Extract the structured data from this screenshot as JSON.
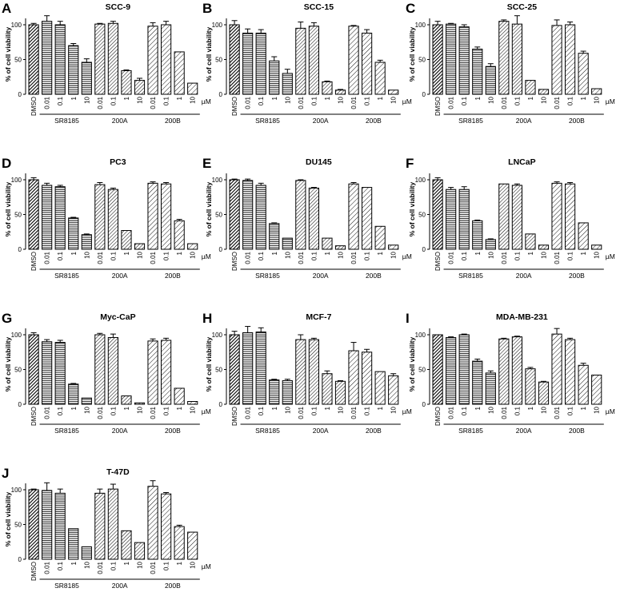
{
  "figure": {
    "x_categories": [
      "DMSO",
      "0.01",
      "0.1",
      "1",
      "10",
      "0.01",
      "0.1",
      "1",
      "10",
      "0.01",
      "0.1",
      "1",
      "10"
    ],
    "unit": "µM",
    "groups": [
      {
        "name": "SR8185",
        "pattern": "horizontal-stripes",
        "start": 1,
        "end": 4
      },
      {
        "name": "200A",
        "pattern": "diagonal-fine",
        "start": 5,
        "end": 8
      },
      {
        "name": "200B",
        "pattern": "diagonal-wide",
        "start": 9,
        "end": 12
      }
    ],
    "ylabel": "% of cell viability",
    "yticks": [
      "0",
      "50",
      "100"
    ],
    "colors": {
      "ink": "#000000",
      "dmso_fill": "#555555",
      "background": "#ffffff"
    }
  },
  "chart_data": [
    {
      "type": "bar",
      "letter": "A",
      "title": "SCC-9",
      "ylabel": "% of cell viability",
      "ylim": [
        0,
        120
      ],
      "categories": [
        "DMSO",
        "0.01",
        "0.1",
        "1",
        "10",
        "0.01",
        "0.1",
        "1",
        "10",
        "0.01",
        "0.1",
        "1",
        "10"
      ],
      "values": [
        100,
        105,
        100,
        70,
        46,
        101,
        102,
        34,
        20,
        98,
        100,
        61,
        16
      ],
      "errors": [
        2,
        8,
        5,
        3,
        5,
        1,
        3,
        1,
        3,
        5,
        5,
        0,
        0
      ]
    },
    {
      "type": "bar",
      "letter": "B",
      "title": "SCC-15",
      "ylabel": "% of cell viability",
      "ylim": [
        0,
        120
      ],
      "categories": [
        "DMSO",
        "0.01",
        "0.1",
        "1",
        "10",
        "0.01",
        "0.1",
        "1",
        "10",
        "0.01",
        "0.1",
        "1",
        "10"
      ],
      "values": [
        100,
        88,
        88,
        48,
        30,
        95,
        98,
        18,
        6,
        98,
        88,
        46,
        6
      ],
      "errors": [
        6,
        6,
        5,
        6,
        6,
        9,
        5,
        1,
        1,
        1,
        5,
        3,
        0
      ]
    },
    {
      "type": "bar",
      "letter": "C",
      "title": "SCC-25",
      "ylabel": "% of cell viability",
      "ylim": [
        0,
        120
      ],
      "categories": [
        "DMSO",
        "0.01",
        "0.1",
        "1",
        "10",
        "0.01",
        "0.1",
        "1",
        "10",
        "0.01",
        "0.1",
        "1",
        "10"
      ],
      "values": [
        100,
        101,
        97,
        65,
        40,
        105,
        101,
        20,
        7,
        99,
        100,
        59,
        8
      ],
      "errors": [
        5,
        1,
        3,
        3,
        4,
        2,
        12,
        0,
        0,
        8,
        4,
        3,
        0
      ]
    },
    {
      "type": "bar",
      "letter": "D",
      "title": "PC3",
      "ylabel": "% of cell viability",
      "ylim": [
        0,
        120
      ],
      "categories": [
        "DMSO",
        "0.01",
        "0.1",
        "1",
        "10",
        "0.01",
        "0.1",
        "1",
        "10",
        "0.01",
        "0.1",
        "1",
        "10"
      ],
      "values": [
        100,
        92,
        90,
        45,
        21,
        93,
        86,
        27,
        8,
        95,
        94,
        41,
        8
      ],
      "errors": [
        3,
        3,
        2,
        1,
        1,
        3,
        2,
        0,
        0,
        2,
        2,
        2,
        0
      ]
    },
    {
      "type": "bar",
      "letter": "E",
      "title": "DU145",
      "ylabel": "% of cell viability",
      "ylim": [
        0,
        120
      ],
      "categories": [
        "DMSO",
        "0.01",
        "0.1",
        "1",
        "10",
        "0.01",
        "0.1",
        "1",
        "10",
        "0.01",
        "0.1",
        "1",
        "10"
      ],
      "values": [
        100,
        99,
        92,
        37,
        16,
        99,
        88,
        16,
        5,
        94,
        89,
        33,
        6
      ],
      "errors": [
        1,
        2,
        3,
        1,
        0,
        1,
        1,
        0,
        0,
        2,
        0,
        0,
        0
      ]
    },
    {
      "type": "bar",
      "letter": "F",
      "title": "LNCaP",
      "ylabel": "% of cell viability",
      "ylim": [
        0,
        120
      ],
      "categories": [
        "DMSO",
        "0.01",
        "0.1",
        "1",
        "10",
        "0.01",
        "0.1",
        "1",
        "10",
        "0.01",
        "0.1",
        "1",
        "10"
      ],
      "values": [
        100,
        86,
        86,
        41,
        14,
        94,
        92,
        22,
        6,
        95,
        94,
        38,
        6
      ],
      "errors": [
        3,
        3,
        4,
        1,
        1,
        0,
        2,
        0,
        0,
        2,
        2,
        0,
        0
      ]
    },
    {
      "type": "bar",
      "letter": "G",
      "title": "Myc-CaP",
      "ylabel": "% of cell viability",
      "ylim": [
        0,
        120
      ],
      "categories": [
        "DMSO",
        "0.01",
        "0.1",
        "1",
        "10",
        "0.01",
        "0.1",
        "1",
        "10",
        "0.01",
        "0.1",
        "1",
        "10"
      ],
      "values": [
        100,
        90,
        89,
        29,
        9,
        100,
        96,
        12,
        2,
        91,
        92,
        23,
        4
      ],
      "errors": [
        3,
        3,
        3,
        1,
        0,
        2,
        5,
        0,
        0,
        3,
        3,
        0,
        0
      ]
    },
    {
      "type": "bar",
      "letter": "H",
      "title": "MCF-7",
      "ylabel": "% of cell viability",
      "ylim": [
        0,
        120
      ],
      "categories": [
        "DMSO",
        "0.01",
        "0.1",
        "1",
        "10",
        "0.01",
        "0.1",
        "1",
        "10",
        "0.01",
        "0.1",
        "1",
        "10"
      ],
      "values": [
        100,
        103,
        104,
        35,
        34,
        93,
        93,
        44,
        33,
        77,
        75,
        47,
        41
      ],
      "errors": [
        5,
        9,
        6,
        1,
        2,
        7,
        2,
        4,
        1,
        12,
        4,
        0,
        3
      ]
    },
    {
      "type": "bar",
      "letter": "I",
      "title": "MDA-MB-231",
      "ylabel": "% of cell viability",
      "ylim": [
        0,
        120
      ],
      "categories": [
        "DMSO",
        "0.01",
        "0.1",
        "1",
        "10",
        "0.01",
        "0.1",
        "1",
        "10",
        "0.01",
        "0.1",
        "1",
        "10"
      ],
      "values": [
        100,
        96,
        100,
        62,
        45,
        94,
        97,
        51,
        32,
        101,
        93,
        56,
        42
      ],
      "errors": [
        0,
        1,
        1,
        3,
        3,
        1,
        1,
        2,
        1,
        8,
        2,
        3,
        0
      ]
    },
    {
      "type": "bar",
      "letter": "J",
      "title": "T-47D",
      "ylabel": "% of cell viability",
      "ylim": [
        0,
        120
      ],
      "categories": [
        "DMSO",
        "0.01",
        "0.1",
        "1",
        "10",
        "0.01",
        "0.1",
        "1",
        "10",
        "0.01",
        "0.1",
        "1",
        "10"
      ],
      "values": [
        100,
        99,
        95,
        44,
        18,
        95,
        101,
        41,
        24,
        105,
        94,
        47,
        39
      ],
      "errors": [
        1,
        11,
        6,
        0,
        0,
        6,
        7,
        0,
        0,
        8,
        2,
        2,
        0
      ]
    }
  ]
}
